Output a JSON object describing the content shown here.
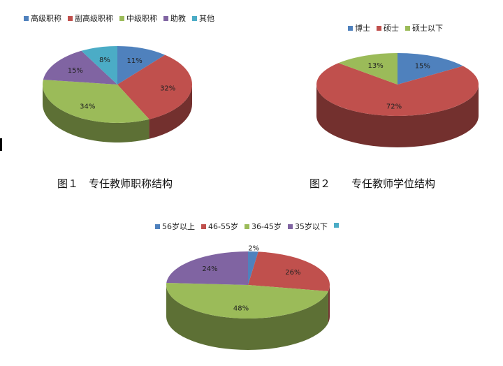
{
  "chart_data": [
    {
      "type": "pie",
      "style": "3d",
      "caption": "图１　专任教师职称结构",
      "categories": [
        "高级职称",
        "副高级职称",
        "中级职称",
        "助教",
        "其他"
      ],
      "values": [
        11,
        32,
        34,
        15,
        8
      ],
      "labels": [
        "11%",
        "32%",
        "34%",
        "15%",
        "8%"
      ],
      "colors": [
        "#4f81bd",
        "#c0504d",
        "#9bbb59",
        "#8064a2",
        "#4bacc6"
      ],
      "legend": "top"
    },
    {
      "type": "pie",
      "style": "3d",
      "caption": "图２　　专任教师学位结构",
      "categories": [
        "博士",
        "硕士",
        "硕士以下"
      ],
      "values": [
        15,
        72,
        13
      ],
      "labels": [
        "15%",
        "72%",
        "13%"
      ],
      "colors": [
        "#4f81bd",
        "#c0504d",
        "#9bbb59"
      ],
      "legend": "top"
    },
    {
      "type": "pie",
      "style": "3d",
      "caption": "",
      "categories": [
        "56岁以上",
        "46-55岁",
        "36-45岁",
        "35岁以下",
        ""
      ],
      "values": [
        2,
        26,
        48,
        24,
        0
      ],
      "labels": [
        "2%",
        "26%",
        "48%",
        "24%",
        ""
      ],
      "colors": [
        "#4f81bd",
        "#c0504d",
        "#9bbb59",
        "#8064a2",
        "#4bacc6"
      ],
      "legend": "top"
    }
  ]
}
